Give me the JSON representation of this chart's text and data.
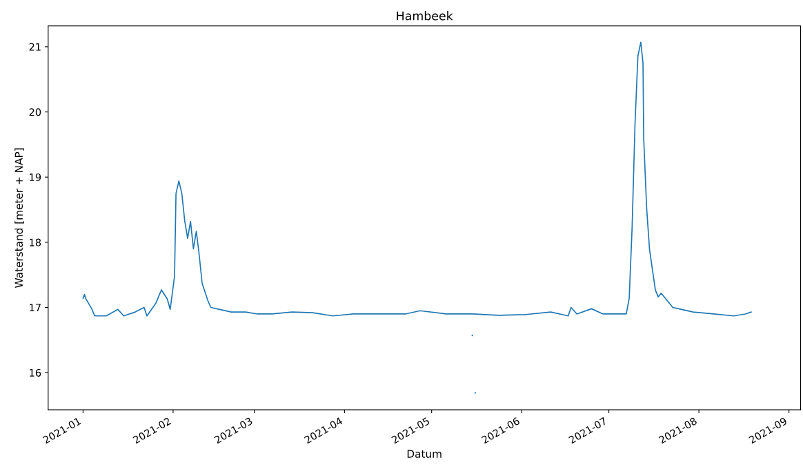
{
  "chart_data": {
    "type": "line",
    "title": "Hambeek",
    "xlabel": "Datum",
    "ylabel": "Waterstand [meter + NAP]",
    "xlim": [
      "2020-12-20",
      "2021-09-05"
    ],
    "xticks": [
      {
        "value": "2021-01-01",
        "label": "2021-01"
      },
      {
        "value": "2021-02-01",
        "label": "2021-02"
      },
      {
        "value": "2021-03-01",
        "label": "2021-03"
      },
      {
        "value": "2021-04-01",
        "label": "2021-04"
      },
      {
        "value": "2021-05-01",
        "label": "2021-05"
      },
      {
        "value": "2021-06-01",
        "label": "2021-06"
      },
      {
        "value": "2021-07-01",
        "label": "2021-07"
      },
      {
        "value": "2021-08-01",
        "label": "2021-08"
      },
      {
        "value": "2021-09-01",
        "label": "2021-09"
      }
    ],
    "ylim": [
      15.43,
      21.32
    ],
    "yticks": [
      16,
      17,
      18,
      19,
      20,
      21
    ],
    "grid": false,
    "legend": false,
    "series": [
      {
        "color": "#1f77b4",
        "line_style": "solid",
        "marker": "none",
        "x": [
          "2021-01-01",
          "2021-01-01T12:00",
          "2021-01-02",
          "2021-01-04",
          "2021-01-05",
          "2021-01-09",
          "2021-01-13",
          "2021-01-15",
          "2021-01-19",
          "2021-01-22",
          "2021-01-23",
          "2021-01-26",
          "2021-01-28",
          "2021-01-30",
          "2021-01-31",
          "2021-02-01T12:00",
          "2021-02-02",
          "2021-02-03",
          "2021-02-04",
          "2021-02-05",
          "2021-02-06",
          "2021-02-07",
          "2021-02-08",
          "2021-02-09",
          "2021-02-10",
          "2021-02-11",
          "2021-02-13",
          "2021-02-14",
          "2021-02-17",
          "2021-02-21",
          "2021-02-26",
          "2021-03-02",
          "2021-03-07",
          "2021-03-14",
          "2021-03-21",
          "2021-03-28",
          "2021-04-04",
          "2021-04-13",
          "2021-04-22",
          "2021-04-27",
          "2021-05-06",
          "2021-05-15",
          "2021-05-24",
          "2021-06-02",
          "2021-06-11",
          "2021-06-17",
          "2021-06-18",
          "2021-06-20",
          "2021-06-25",
          "2021-06-29",
          "2021-07-07",
          "2021-07-08",
          "2021-07-09",
          "2021-07-10",
          "2021-07-11",
          "2021-07-12",
          "2021-07-12T18:00",
          "2021-07-13",
          "2021-07-14",
          "2021-07-15",
          "2021-07-16",
          "2021-07-17",
          "2021-07-18",
          "2021-07-19",
          "2021-07-21",
          "2021-07-23",
          "2021-07-25",
          "2021-07-30",
          "2021-08-06",
          "2021-08-13",
          "2021-08-17",
          "2021-08-19"
        ],
        "values": [
          17.14,
          17.2,
          17.13,
          16.98,
          16.87,
          16.87,
          16.97,
          16.87,
          16.93,
          17.0,
          16.87,
          17.06,
          17.27,
          17.13,
          16.97,
          17.48,
          18.75,
          18.94,
          18.75,
          18.33,
          18.06,
          18.32,
          17.9,
          18.17,
          17.8,
          17.37,
          17.1,
          17.0,
          16.97,
          16.93,
          16.93,
          16.9,
          16.9,
          16.93,
          16.92,
          16.87,
          16.9,
          16.9,
          16.9,
          16.95,
          16.9,
          16.9,
          16.88,
          16.89,
          16.93,
          16.87,
          17.0,
          16.9,
          16.98,
          16.9,
          16.9,
          17.14,
          18.22,
          19.81,
          20.86,
          21.07,
          20.75,
          19.59,
          18.53,
          17.89,
          17.58,
          17.27,
          17.16,
          17.22,
          17.11,
          17.0,
          16.98,
          16.93,
          16.9,
          16.87,
          16.9,
          16.93
        ]
      },
      {
        "type": "scatter",
        "color": "#1f77b4",
        "marker": "square",
        "x": [
          "2021-05-15",
          "2021-05-16"
        ],
        "values": [
          16.57,
          15.69
        ]
      }
    ]
  }
}
